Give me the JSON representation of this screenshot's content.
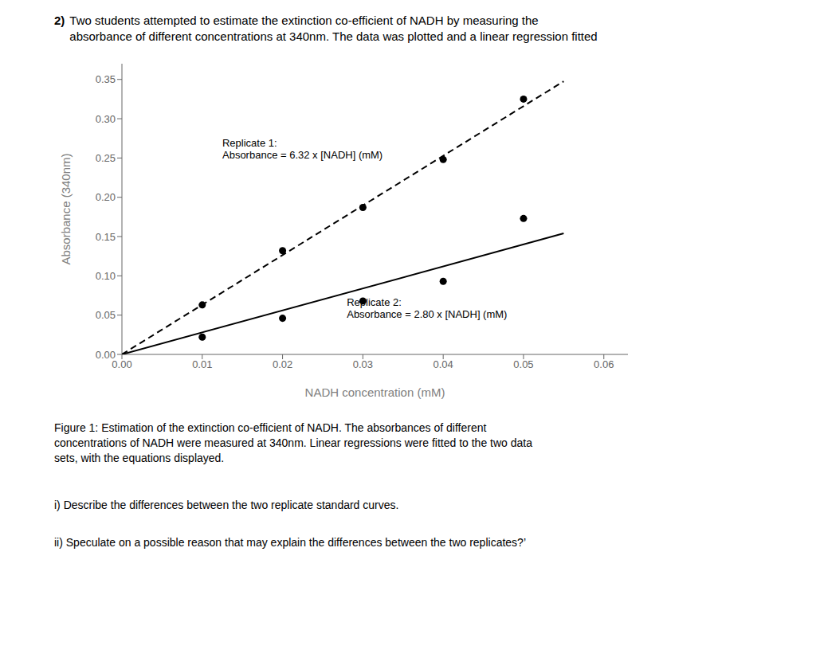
{
  "chart_data": {
    "type": "scatter",
    "title": "2)",
    "subtitle": "Two students attempted to estimate the extinction co-efficient of NADH by measuring the\nabsorbance of different concentrations at 340nm. The data was plotted and a linear regression fitted",
    "xlabel": "NADH concentration (mM)",
    "ylabel": "Absorbance (340nm)",
    "xlim": [
      0.0,
      0.063
    ],
    "ylim": [
      0.0,
      0.37
    ],
    "xticks": [
      {
        "value": 0.0,
        "label": "0.00"
      },
      0.01,
      0.02,
      0.03,
      0.04,
      0.05,
      0.06
    ],
    "yticks": [
      {
        "value": 0.0,
        "label": "0.00"
      },
      0.05,
      {
        "value": 0.1,
        "label": "0.10"
      },
      0.15,
      {
        "value": 0.2,
        "label": "0.20"
      },
      0.25,
      {
        "value": 0.3,
        "label": "0.30"
      },
      0.35
    ],
    "grid": false,
    "series": [
      {
        "type": "line",
        "color": "black",
        "line_style": "dashed",
        "x": [
          0.0,
          0.055
        ],
        "values": [
          0.0,
          0.3476
        ]
      },
      {
        "type": "line",
        "color": "black",
        "line_style": "solid",
        "x": [
          0.0,
          0.055
        ],
        "values": [
          0.0,
          0.154
        ]
      },
      {
        "type": "scatter",
        "color": "black",
        "marker": "circle",
        "x": [
          0.01,
          0.02,
          0.03,
          0.04,
          0.05
        ],
        "values": [
          0.063,
          0.132,
          0.187,
          0.248,
          0.325
        ]
      },
      {
        "type": "scatter",
        "color": "black",
        "marker": "circle",
        "x": [
          0.01,
          0.02,
          0.03,
          0.04,
          0.05
        ],
        "values": [
          0.022,
          0.046,
          0.068,
          0.093,
          0.173
        ]
      }
    ],
    "annotations": [
      {
        "text": "Replicate 1:\nAbsorbance = 6.32 x [NADH] (mM)",
        "x": 0.0125,
        "y": 0.245
      },
      {
        "text": "Replicate 2:\nAbsorbance = 2.80 x [NADH] (mM)",
        "x": 0.028,
        "y": 0.043
      }
    ],
    "caption": "Figure 1: Estimation of the extinction co-efficient of NADH. The absorbances of different\nconcentrations of NADH were measured at 340nm. Linear regressions were fitted to the two data\nsets, with the equations displayed.",
    "questions": [
      "i) Describe the differences between the two replicate standard curves.",
      "ii) Speculate on a possible reason that may explain the differences between the two replicates?’"
    ]
  }
}
